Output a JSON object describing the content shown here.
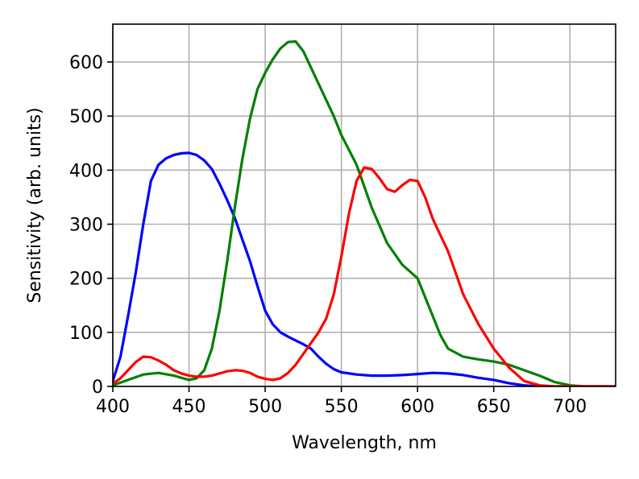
{
  "chart_data": {
    "type": "line",
    "title": "",
    "xlabel": "Wavelength, nm",
    "ylabel": "Sensitivity (arb. units)",
    "xlim": [
      400,
      730
    ],
    "ylim": [
      0,
      670
    ],
    "xticks": [
      400,
      450,
      500,
      550,
      600,
      650,
      700
    ],
    "yticks": [
      0,
      100,
      200,
      300,
      400,
      500,
      600
    ],
    "grid": true,
    "legend": "none",
    "series": [
      {
        "color": "#0000ff",
        "x": [
          400,
          405,
          410,
          415,
          420,
          425,
          430,
          435,
          440,
          445,
          450,
          455,
          460,
          465,
          470,
          475,
          480,
          485,
          490,
          495,
          500,
          505,
          510,
          515,
          520,
          525,
          530,
          535,
          540,
          545,
          550,
          560,
          570,
          580,
          590,
          600,
          610,
          620,
          630,
          640,
          650,
          660,
          670,
          680,
          690,
          700,
          710,
          720,
          730
        ],
        "y": [
          10,
          55,
          130,
          210,
          300,
          380,
          410,
          422,
          428,
          431,
          432,
          428,
          418,
          402,
          375,
          345,
          312,
          272,
          232,
          185,
          140,
          115,
          100,
          92,
          85,
          78,
          70,
          55,
          42,
          32,
          26,
          22,
          20,
          20,
          21,
          23,
          25,
          24,
          21,
          16,
          12,
          6,
          2,
          0,
          0,
          0,
          0,
          0,
          0
        ]
      },
      {
        "color": "#008000",
        "x": [
          400,
          410,
          420,
          430,
          440,
          450,
          455,
          460,
          465,
          470,
          475,
          480,
          485,
          490,
          495,
          500,
          505,
          510,
          515,
          520,
          525,
          530,
          535,
          540,
          545,
          550,
          560,
          570,
          580,
          590,
          600,
          605,
          610,
          615,
          620,
          630,
          640,
          650,
          660,
          670,
          680,
          690,
          700,
          710,
          720,
          730
        ],
        "y": [
          2,
          12,
          22,
          25,
          20,
          12,
          15,
          30,
          70,
          140,
          230,
          330,
          420,
          495,
          550,
          580,
          605,
          625,
          637,
          638,
          620,
          590,
          560,
          530,
          500,
          465,
          410,
          330,
          265,
          225,
          200,
          165,
          130,
          95,
          70,
          55,
          50,
          46,
          40,
          30,
          20,
          8,
          2,
          0,
          0,
          0
        ]
      },
      {
        "color": "#ff0000",
        "x": [
          400,
          405,
          410,
          415,
          420,
          425,
          430,
          435,
          440,
          445,
          450,
          455,
          460,
          465,
          470,
          475,
          480,
          485,
          490,
          495,
          500,
          505,
          510,
          515,
          520,
          525,
          530,
          535,
          540,
          545,
          550,
          555,
          560,
          565,
          570,
          575,
          580,
          585,
          590,
          595,
          600,
          605,
          610,
          615,
          620,
          625,
          630,
          640,
          650,
          660,
          670,
          680,
          690,
          700,
          705,
          710,
          720,
          730
        ],
        "y": [
          5,
          15,
          30,
          45,
          55,
          54,
          48,
          40,
          30,
          24,
          20,
          18,
          18,
          20,
          24,
          28,
          30,
          29,
          25,
          18,
          14,
          12,
          15,
          25,
          40,
          60,
          80,
          100,
          125,
          170,
          240,
          320,
          380,
          405,
          402,
          385,
          365,
          360,
          372,
          382,
          380,
          350,
          310,
          280,
          250,
          210,
          170,
          115,
          70,
          35,
          10,
          2,
          0,
          0,
          0,
          0,
          0,
          0
        ]
      }
    ]
  }
}
